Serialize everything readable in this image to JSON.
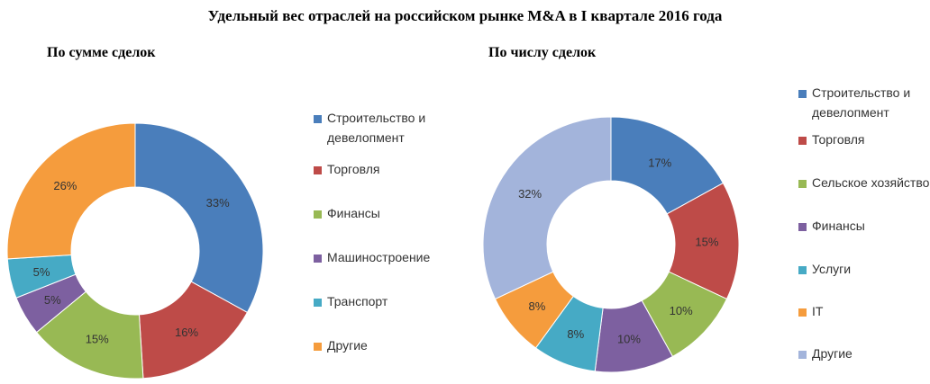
{
  "title": "Удельный вес отраслей на российском рынке M&A в I квартале 2016 года",
  "chart_data": [
    {
      "type": "pie",
      "title": "По сумме сделок",
      "categories": [
        "Строительство и девелопмент",
        "Торговля",
        "Финансы",
        "Машиностроение",
        "Транспорт",
        "Другие"
      ],
      "values": [
        33,
        16,
        15,
        5,
        5,
        26
      ],
      "labels": [
        "33%",
        "16%",
        "15%",
        "5%",
        "5%",
        "26%"
      ],
      "colors": [
        "#4a7ebb",
        "#be4b48",
        "#98b954",
        "#7d60a0",
        "#46aac5",
        "#f59c3d"
      ],
      "legend": "right",
      "hole": 0.5
    },
    {
      "type": "pie",
      "title": "По числу сделок",
      "categories": [
        "Строительство и девелопмент",
        "Торговля",
        "Сельское хозяйство",
        "Финансы",
        "Услуги",
        "IT",
        "Другие"
      ],
      "values": [
        17,
        15,
        10,
        10,
        8,
        8,
        32
      ],
      "labels": [
        "17%",
        "15%",
        "10%",
        "10%",
        "8%",
        "8%",
        "32%"
      ],
      "colors": [
        "#4a7ebb",
        "#be4b48",
        "#98b954",
        "#7d60a0",
        "#46aac5",
        "#f59c3d",
        "#a3b4db"
      ],
      "legend": "right",
      "hole": 0.5
    }
  ]
}
